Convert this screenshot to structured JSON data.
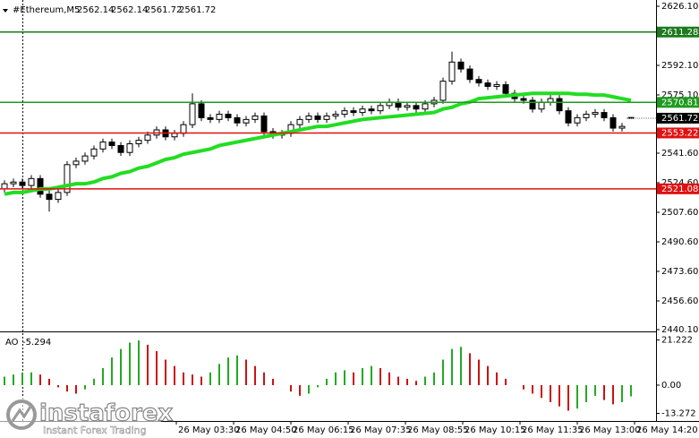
{
  "chart_data": [
    {
      "type": "candlestick",
      "title": "#Ethereum,M5",
      "open": [
        2521,
        2524,
        2525,
        2523,
        2527,
        2518,
        2515,
        2519,
        2535,
        2537,
        2540,
        2544,
        2548,
        2546,
        2542,
        2547,
        2549,
        2552,
        2555,
        2551,
        2553,
        2558,
        2570,
        2562,
        2561,
        2564,
        2562,
        2559,
        2561,
        2563,
        2554,
        2552,
        2553,
        2558,
        2561,
        2563,
        2561,
        2563,
        2564,
        2566,
        2565,
        2567,
        2566,
        2569,
        2571,
        2568,
        2569,
        2567,
        2570,
        2572,
        2583,
        2594,
        2590,
        2584,
        2582,
        2580,
        2581,
        2576,
        2573,
        2572,
        2567,
        2571,
        2573,
        2566,
        2559,
        2562,
        2564,
        2565,
        2562,
        2556,
        2562.14
      ],
      "high": [
        2526,
        2527,
        2527,
        2529,
        2529,
        2520,
        2521,
        2537,
        2539,
        2542,
        2546,
        2550,
        2550,
        2548,
        2549,
        2551,
        2554,
        2557,
        2557,
        2555,
        2560,
        2576,
        2572,
        2564,
        2566,
        2566,
        2564,
        2563,
        2565,
        2565,
        2556,
        2555,
        2560,
        2563,
        2565,
        2565,
        2565,
        2566,
        2568,
        2568,
        2569,
        2569,
        2571,
        2573,
        2573,
        2571,
        2571,
        2572,
        2574,
        2585,
        2600,
        2596,
        2592,
        2586,
        2584,
        2583,
        2583,
        2578,
        2575,
        2574,
        2573,
        2575,
        2575,
        2568,
        2564,
        2566,
        2567,
        2567,
        2564,
        2559,
        2562.14
      ],
      "low": [
        2519,
        2522,
        2521,
        2521,
        2516,
        2508,
        2513,
        2517,
        2533,
        2535,
        2538,
        2542,
        2544,
        2540,
        2540,
        2545,
        2547,
        2550,
        2549,
        2549,
        2551,
        2556,
        2560,
        2559,
        2559,
        2560,
        2557,
        2557,
        2559,
        2552,
        2550,
        2550,
        2551,
        2556,
        2559,
        2559,
        2559,
        2561,
        2562,
        2563,
        2563,
        2564,
        2564,
        2567,
        2566,
        2566,
        2565,
        2565,
        2568,
        2570,
        2581,
        2588,
        2582,
        2580,
        2578,
        2578,
        2574,
        2571,
        2570,
        2565,
        2565,
        2569,
        2564,
        2557,
        2557,
        2560,
        2562,
        2560,
        2554,
        2554,
        2561.72
      ],
      "close": [
        2524,
        2525,
        2523,
        2527,
        2518,
        2515,
        2519,
        2535,
        2537,
        2540,
        2544,
        2548,
        2546,
        2542,
        2547,
        2549,
        2552,
        2555,
        2551,
        2553,
        2558,
        2570,
        2562,
        2561,
        2564,
        2562,
        2559,
        2561,
        2563,
        2554,
        2552,
        2553,
        2558,
        2561,
        2563,
        2561,
        2563,
        2564,
        2566,
        2565,
        2567,
        2566,
        2569,
        2571,
        2568,
        2569,
        2567,
        2570,
        2572,
        2583,
        2594,
        2590,
        2584,
        2582,
        2580,
        2581,
        2576,
        2573,
        2572,
        2567,
        2571,
        2573,
        2566,
        2559,
        2562,
        2564,
        2565,
        2562,
        2556,
        2557,
        2561.72
      ],
      "up_color": "#ffffff",
      "down_color": "#000000",
      "ma": {
        "color": "#22dd22",
        "values": [
          2518,
          2519,
          2519,
          2520,
          2521,
          2521,
          2522,
          2523,
          2524,
          2524,
          2525,
          2527,
          2528,
          2530,
          2531,
          2533,
          2534,
          2536,
          2538,
          2539,
          2541,
          2542,
          2543,
          2544,
          2546,
          2547,
          2548,
          2549,
          2550,
          2551,
          2552,
          2553,
          2554,
          2555,
          2556,
          2557,
          2557,
          2558,
          2559,
          2560,
          2561,
          2561.5,
          2562,
          2562.5,
          2563,
          2563.5,
          2564,
          2564.5,
          2565,
          2567,
          2568,
          2570,
          2571,
          2573,
          2573.5,
          2574,
          2574.5,
          2575,
          2575.5,
          2576,
          2576,
          2576,
          2576,
          2576,
          2575.5,
          2575.5,
          2575,
          2575,
          2574,
          2573,
          2572
        ]
      },
      "levels": [
        {
          "value": 2611.28,
          "color": "#1d7a1d"
        },
        {
          "value": 2570.81,
          "color": "#1f9a1f"
        },
        {
          "value": 2553.22,
          "color": "#e01010"
        },
        {
          "value": 2521.08,
          "color": "#e01010"
        }
      ],
      "ylim": [
        2440.1,
        2626.1
      ],
      "yticks": [
        {
          "value": 2626.1,
          "label": "2626.10"
        },
        {
          "value": 2592.1,
          "label": "2592.10"
        },
        {
          "value": 2575.1,
          "label": "2575.10"
        },
        {
          "value": 2541.6,
          "label": "2541.60"
        },
        {
          "value": 2524.6,
          "label": "2524.60"
        },
        {
          "value": 2507.6,
          "label": "2507.60"
        },
        {
          "value": 2490.6,
          "label": "2490.60"
        },
        {
          "value": 2473.6,
          "label": "2473.60"
        },
        {
          "value": 2456.6,
          "label": "2456.60"
        },
        {
          "value": 2440.1,
          "label": "2440.10"
        }
      ],
      "time_labels": [
        "26 May 03:30",
        "26 May 04:50",
        "26 May 06:15",
        "26 May 07:35",
        "26 May 08:55",
        "26 May 10:15",
        "26 May 11:35",
        "26 May 13:00",
        "26 May 14:20"
      ]
    },
    {
      "type": "bar",
      "title": "AO",
      "value_label": "-5.294",
      "values": [
        4,
        5,
        6,
        6,
        5,
        3,
        -1,
        -3,
        -4,
        -2,
        3,
        8,
        13,
        17,
        20,
        21,
        19,
        16,
        12,
        9,
        6,
        5,
        4,
        6,
        10,
        13,
        14,
        12,
        9,
        6,
        3,
        0,
        -3,
        -5,
        -4,
        -1,
        3,
        6,
        7,
        6,
        8,
        9,
        8,
        6,
        4,
        3,
        2,
        4,
        6,
        12,
        17,
        18,
        15,
        12,
        9,
        6,
        3,
        0,
        -2,
        -4,
        -6,
        -8,
        -10,
        -12,
        -11,
        -8,
        -5,
        -7,
        -9,
        -8,
        -5.294
      ],
      "up_color": "#22aa22",
      "down_color": "#cc1111",
      "ylim": [
        -16,
        24
      ],
      "yticks": [
        21.222,
        {
          "value": 0,
          "label": "0.00"
        },
        -13.272
      ]
    }
  ],
  "watermark": {
    "brand": "instaforex",
    "tagline": "Instant Forex Trading"
  }
}
